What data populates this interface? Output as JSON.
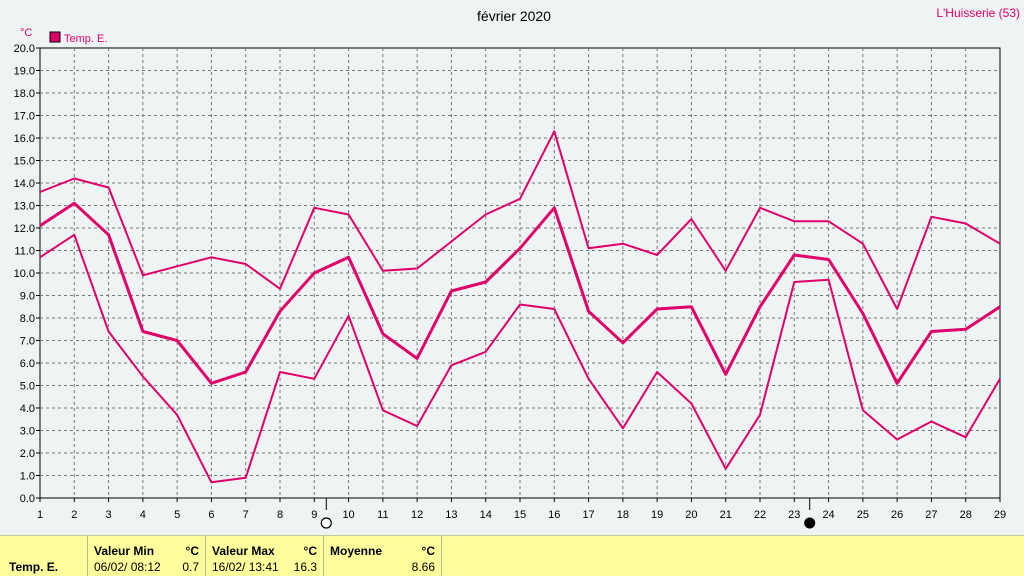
{
  "header": {
    "title": "février 2020",
    "station": "L'Huisserie (53)",
    "unit": "°C"
  },
  "legend": {
    "label": "Temp. E.",
    "color": "#e0006a"
  },
  "chart_data": {
    "type": "line",
    "title": "février 2020",
    "ylabel": "°C",
    "xlabel": "",
    "ylim": [
      0,
      20
    ],
    "xlim": [
      1,
      29
    ],
    "grid": true,
    "legend_position": "top-left",
    "x": [
      1,
      2,
      3,
      4,
      5,
      6,
      7,
      8,
      9,
      10,
      11,
      12,
      13,
      14,
      15,
      16,
      17,
      18,
      19,
      20,
      21,
      22,
      23,
      24,
      25,
      26,
      27,
      28,
      29
    ],
    "x_ticks": [
      "1",
      "2",
      "3",
      "4",
      "5",
      "6",
      "7",
      "8",
      "9",
      "10",
      "11",
      "12",
      "13",
      "14",
      "15",
      "16",
      "17",
      "18",
      "19",
      "20",
      "21",
      "22",
      "23",
      "24",
      "25",
      "26",
      "27",
      "28",
      "29"
    ],
    "y_ticks": [
      "0.0",
      "1.0",
      "2.0",
      "3.0",
      "4.0",
      "5.0",
      "6.0",
      "7.0",
      "8.0",
      "9.0",
      "10.0",
      "11.0",
      "12.0",
      "13.0",
      "14.0",
      "15.0",
      "16.0",
      "17.0",
      "18.0",
      "19.0",
      "20.0"
    ],
    "series": [
      {
        "name": "",
        "role": "max",
        "values": [
          13.6,
          14.2,
          13.8,
          9.9,
          10.3,
          10.7,
          10.4,
          9.3,
          12.9,
          12.6,
          10.1,
          10.2,
          11.4,
          12.6,
          13.3,
          16.3,
          11.1,
          11.3,
          10.8,
          12.4,
          10.1,
          12.9,
          12.3,
          12.3,
          11.3,
          8.4,
          12.5,
          12.2,
          11.3
        ]
      },
      {
        "name": "Temp. E.",
        "role": "mean",
        "values": [
          12.1,
          13.1,
          11.7,
          7.4,
          7.0,
          5.1,
          5.6,
          8.3,
          10.0,
          10.7,
          7.3,
          6.2,
          9.2,
          9.6,
          11.1,
          12.9,
          8.3,
          6.9,
          8.4,
          8.5,
          5.5,
          8.5,
          10.8,
          10.6,
          8.2,
          5.1,
          7.4,
          7.5,
          8.5
        ]
      },
      {
        "name": "",
        "role": "min",
        "values": [
          10.7,
          11.7,
          7.4,
          5.4,
          3.7,
          0.7,
          0.9,
          5.6,
          5.3,
          8.1,
          3.9,
          3.2,
          5.9,
          6.5,
          8.6,
          8.4,
          5.3,
          3.1,
          5.6,
          4.2,
          1.3,
          3.7,
          9.6,
          9.7,
          3.9,
          2.6,
          3.4,
          2.7,
          5.3
        ]
      }
    ],
    "moon_markers": [
      {
        "x": 9.35,
        "phase": "full-moon"
      },
      {
        "x": 23.45,
        "phase": "new-moon"
      }
    ]
  },
  "footer": {
    "row_label": "Temp. E.",
    "min": {
      "header": "Valeur Min",
      "unit": "°C",
      "date": "06/02/  08:12",
      "value": "0.7"
    },
    "max": {
      "header": "Valeur Max",
      "unit": "°C",
      "date": "16/02/  13:41",
      "value": "16.3"
    },
    "avg": {
      "header": "Moyenne",
      "unit": "°C",
      "value": "8.66"
    }
  }
}
